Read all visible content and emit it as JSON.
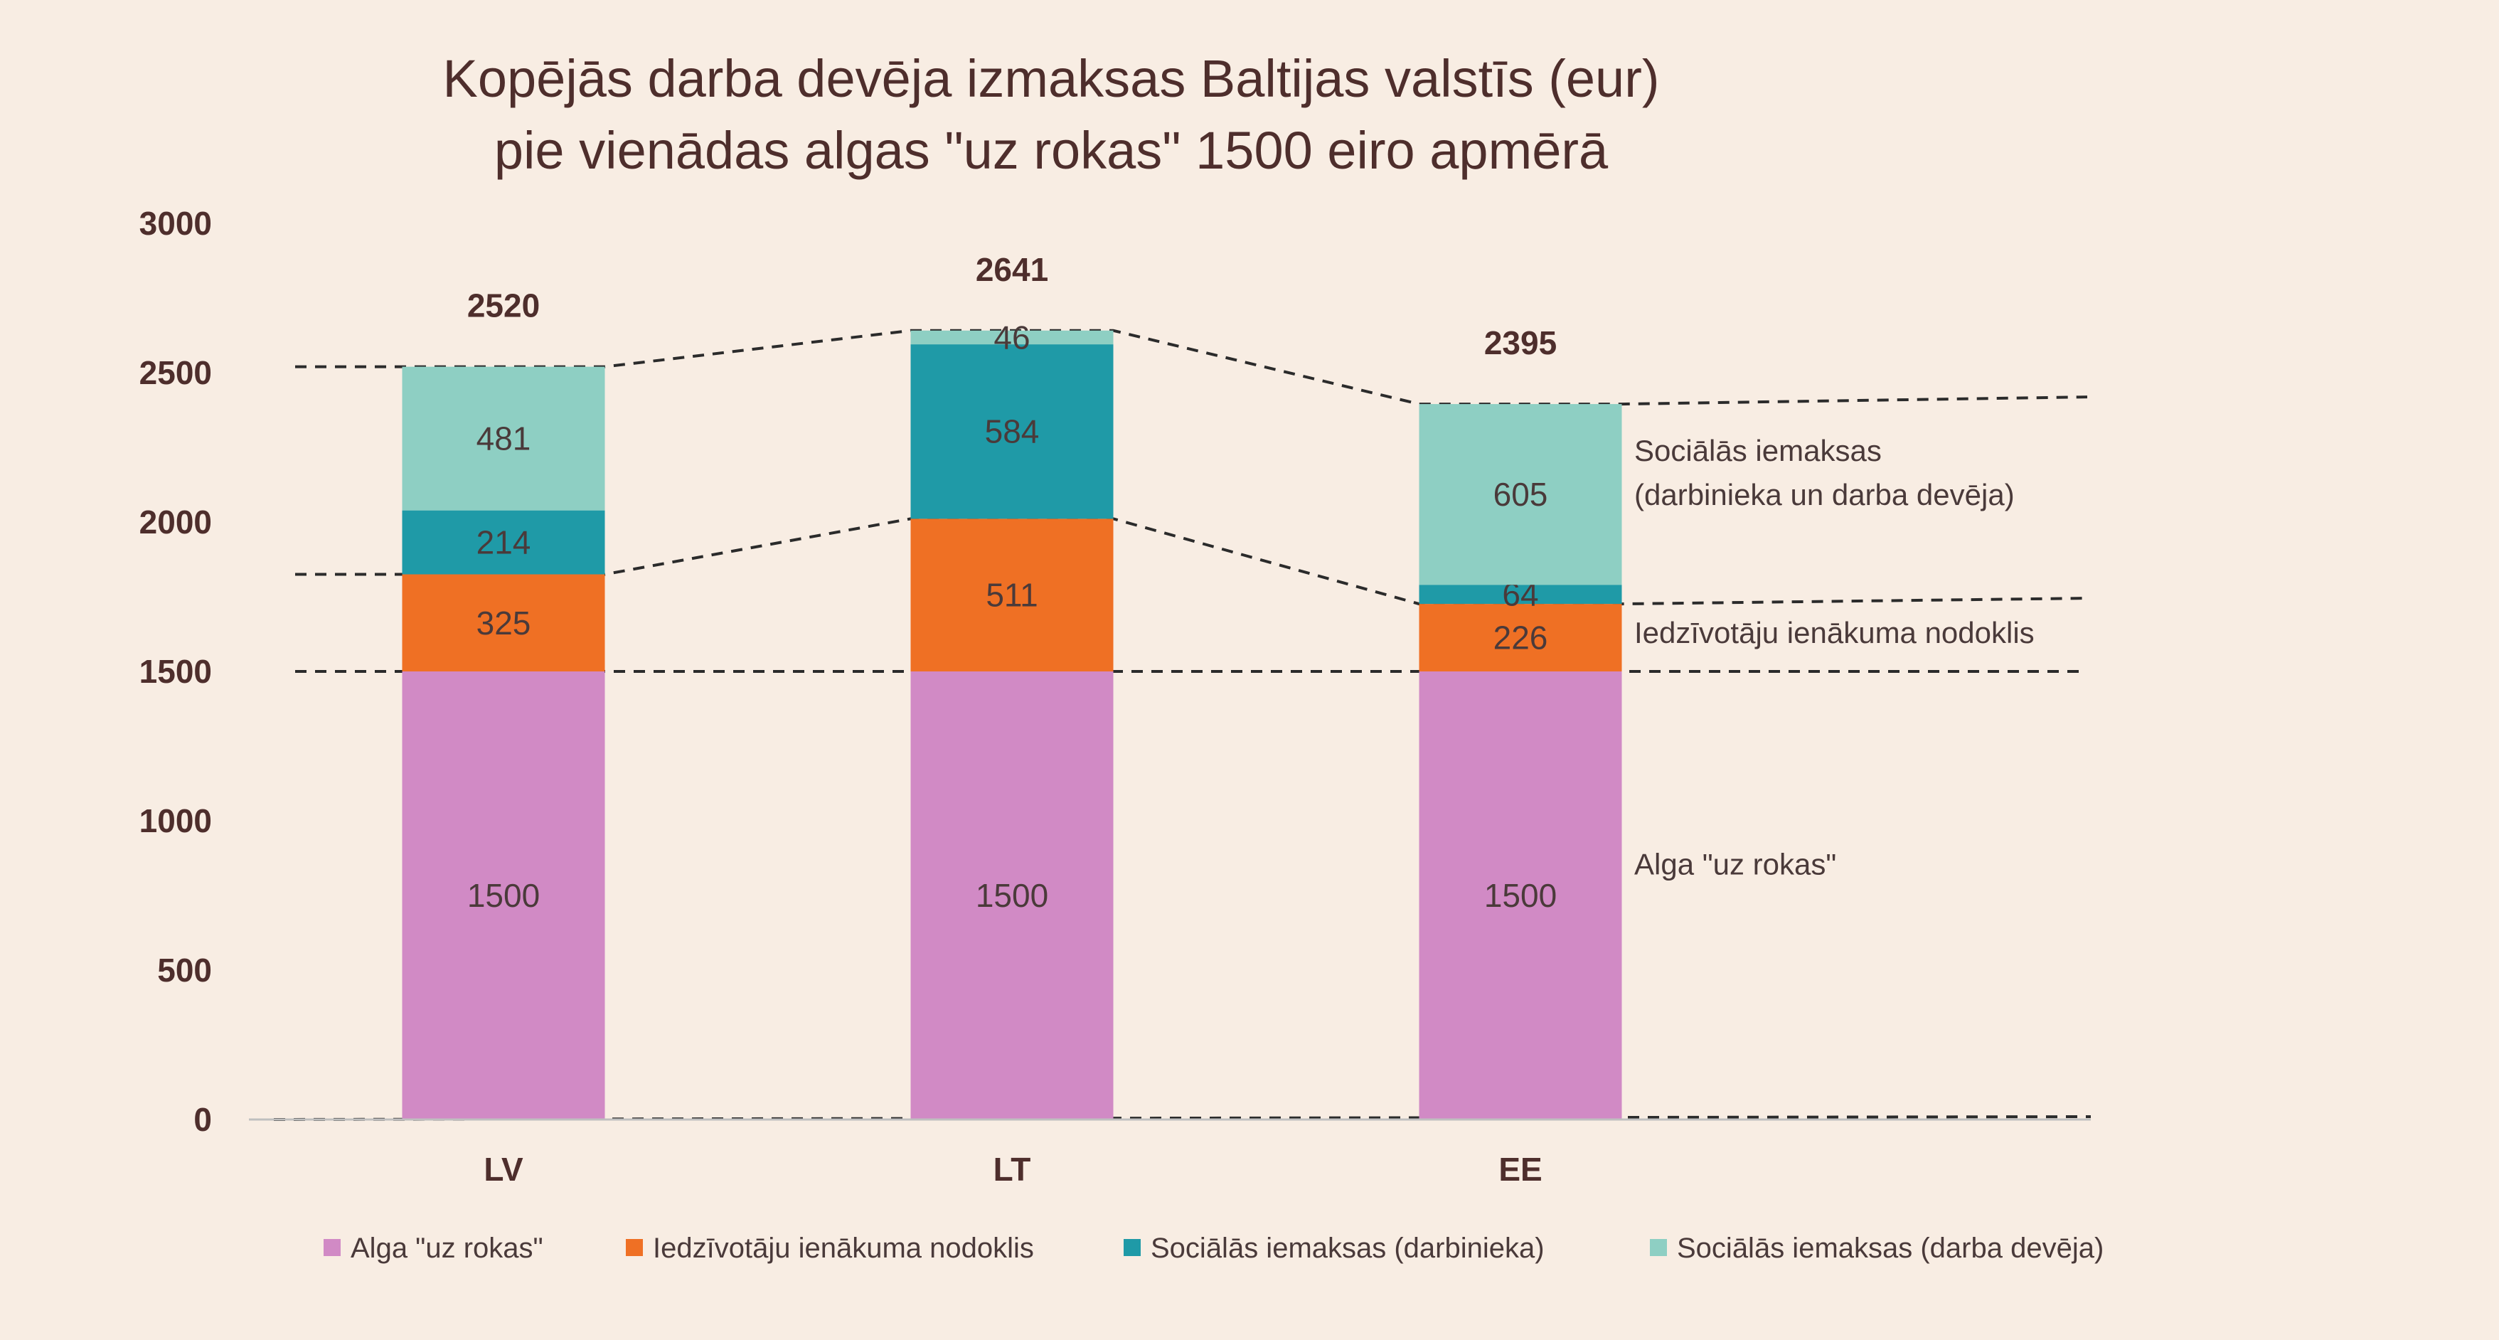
{
  "chart_data": {
    "type": "bar",
    "stacked": true,
    "title": [
      "Kopējās darba devēja izmaksas Baltijas valstīs (eur)",
      "pie vienādas algas \"uz rokas\" 1500 eiro apmērā"
    ],
    "categories": [
      "LV",
      "LT",
      "EE"
    ],
    "series": [
      {
        "name": "Alga \"uz rokas\"",
        "color": "#d18ac5",
        "values": [
          1500,
          1500,
          1500
        ]
      },
      {
        "name": "Iedzīvotāju ienākuma nodoklis",
        "color": "#ef7024",
        "values": [
          325,
          511,
          226
        ]
      },
      {
        "name": "Sociālās iemaksas (darbinieka)",
        "color": "#1f9aa7",
        "values": [
          214,
          584,
          64
        ]
      },
      {
        "name": "Sociālās iemaksas (darba devēja)",
        "color": "#8ecfc3",
        "values": [
          481,
          46,
          605
        ]
      }
    ],
    "totals": [
      2520,
      2641,
      2395
    ],
    "ylim": [
      0,
      3000
    ],
    "yticks": [
      0,
      500,
      1000,
      1500,
      2000,
      2500,
      3000
    ],
    "grid": false,
    "legend_position": "bottom",
    "annotations": [
      {
        "lines": [
          "Sociālās iemaksas",
          "(darbinieka un darba devēja)"
        ],
        "y": 2205
      },
      {
        "lines": [
          "Iedzīvotāju ienākuma nodoklis"
        ],
        "y": 1595
      },
      {
        "lines": [
          "Alga \"uz rokas\""
        ],
        "y": 820
      }
    ]
  }
}
